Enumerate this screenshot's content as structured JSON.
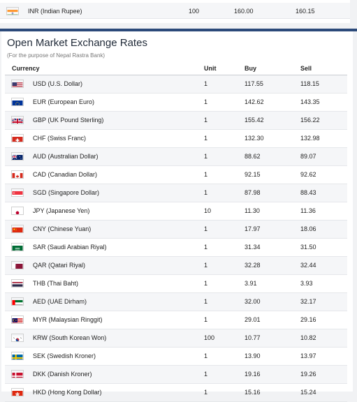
{
  "top_row": {
    "currency": "INR (Indian Rupee)",
    "unit": "100",
    "buy": "160.00",
    "sell": "160.15",
    "flag": "flag-in"
  },
  "section": {
    "title": "Open Market Exchange Rates",
    "subtitle": "(For the purpose of Nepal Rastra Bank)",
    "headers": {
      "currency": "Currency",
      "unit": "Unit",
      "buy": "Buy",
      "sell": "Sell"
    }
  },
  "rows": [
    {
      "currency": "USD (U.S. Dollar)",
      "unit": "1",
      "buy": "117.55",
      "sell": "118.15",
      "flag": "flag-us"
    },
    {
      "currency": "EUR (European Euro)",
      "unit": "1",
      "buy": "142.62",
      "sell": "143.35",
      "flag": "flag-eu"
    },
    {
      "currency": "GBP (UK Pound Sterling)",
      "unit": "1",
      "buy": "155.42",
      "sell": "156.22",
      "flag": "flag-gb"
    },
    {
      "currency": "CHF (Swiss Franc)",
      "unit": "1",
      "buy": "132.30",
      "sell": "132.98",
      "flag": "flag-ch"
    },
    {
      "currency": "AUD (Australian Dollar)",
      "unit": "1",
      "buy": "88.62",
      "sell": "89.07",
      "flag": "flag-au"
    },
    {
      "currency": "CAD (Canadian Dollar)",
      "unit": "1",
      "buy": "92.15",
      "sell": "92.62",
      "flag": "flag-ca"
    },
    {
      "currency": "SGD (Singapore Dollar)",
      "unit": "1",
      "buy": "87.98",
      "sell": "88.43",
      "flag": "flag-sg"
    },
    {
      "currency": "JPY (Japanese Yen)",
      "unit": "10",
      "buy": "11.30",
      "sell": "11.36",
      "flag": "flag-jp"
    },
    {
      "currency": "CNY (Chinese Yuan)",
      "unit": "1",
      "buy": "17.97",
      "sell": "18.06",
      "flag": "flag-cn"
    },
    {
      "currency": "SAR (Saudi Arabian Riyal)",
      "unit": "1",
      "buy": "31.34",
      "sell": "31.50",
      "flag": "flag-sa"
    },
    {
      "currency": "QAR (Qatari Riyal)",
      "unit": "1",
      "buy": "32.28",
      "sell": "32.44",
      "flag": "flag-qa"
    },
    {
      "currency": "THB (Thai Baht)",
      "unit": "1",
      "buy": "3.91",
      "sell": "3.93",
      "flag": "flag-th"
    },
    {
      "currency": "AED (UAE Dirham)",
      "unit": "1",
      "buy": "32.00",
      "sell": "32.17",
      "flag": "flag-ae"
    },
    {
      "currency": "MYR (Malaysian Ringgit)",
      "unit": "1",
      "buy": "29.01",
      "sell": "29.16",
      "flag": "flag-my"
    },
    {
      "currency": "KRW (South Korean Won)",
      "unit": "100",
      "buy": "10.77",
      "sell": "10.82",
      "flag": "flag-kr"
    },
    {
      "currency": "SEK (Swedish Kroner)",
      "unit": "1",
      "buy": "13.90",
      "sell": "13.97",
      "flag": "flag-se"
    },
    {
      "currency": "DKK (Danish Kroner)",
      "unit": "1",
      "buy": "19.16",
      "sell": "19.26",
      "flag": "flag-dk"
    },
    {
      "currency": "HKD (Hong Kong Dollar)",
      "unit": "1",
      "buy": "15.16",
      "sell": "15.24",
      "flag": "flag-hk"
    }
  ]
}
